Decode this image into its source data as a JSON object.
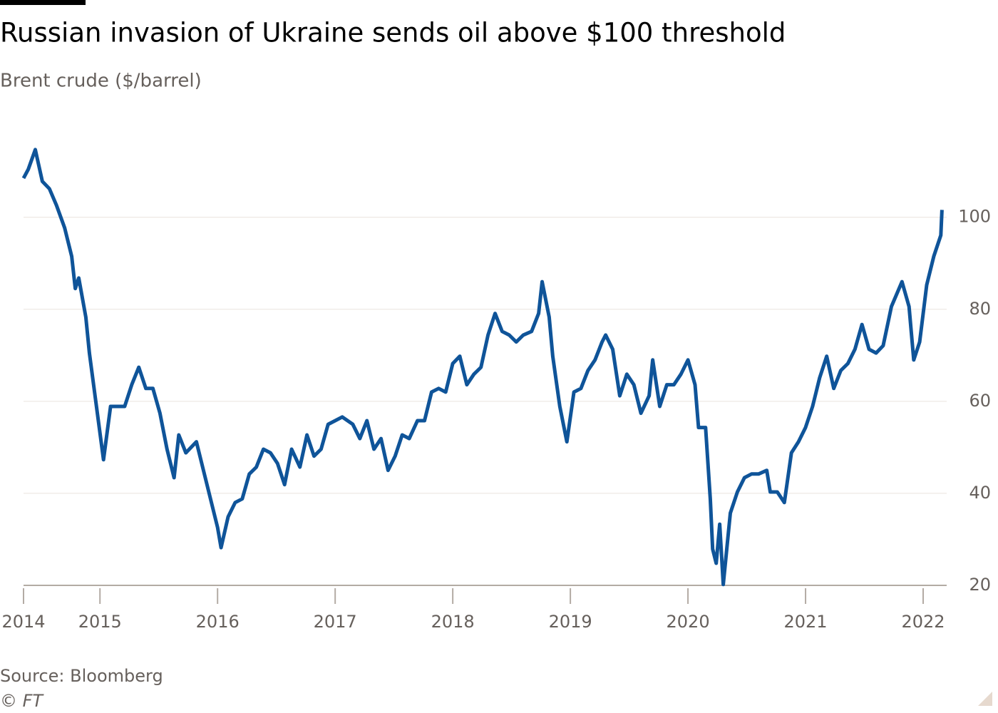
{
  "chart_data": {
    "type": "line",
    "title": "Russian invasion of Ukraine sends oil above $100 threshold",
    "subtitle": "Brent crude ($/barrel)",
    "source": "Source: Bloomberg",
    "credit": "© FT",
    "xlim": [
      2014.35,
      2022.2
    ],
    "xticks": [
      {
        "value": 2014.35,
        "label": "2014"
      },
      2015,
      2016,
      2017,
      2018,
      2019,
      2020,
      2021,
      2022
    ],
    "ylim": [
      20,
      117
    ],
    "yticks": [
      20,
      40,
      60,
      80,
      100
    ],
    "grid": true,
    "series": [
      {
        "name": "Brent crude",
        "color": "#0f5499",
        "x": [
          2014.35,
          2014.39,
          2014.45,
          2014.51,
          2014.57,
          2014.63,
          2014.7,
          2014.76,
          2014.79,
          2014.82,
          2014.88,
          2014.91,
          2014.97,
          2015.03,
          2015.09,
          2015.15,
          2015.21,
          2015.27,
          2015.33,
          2015.39,
          2015.45,
          2015.51,
          2015.57,
          2015.63,
          2015.67,
          2015.73,
          2015.82,
          2015.88,
          2015.94,
          2016.0,
          2016.03,
          2016.09,
          2016.15,
          2016.21,
          2016.27,
          2016.33,
          2016.39,
          2016.45,
          2016.51,
          2016.57,
          2016.63,
          2016.7,
          2016.76,
          2016.82,
          2016.88,
          2016.94,
          2017.0,
          2017.06,
          2017.15,
          2017.21,
          2017.27,
          2017.33,
          2017.39,
          2017.45,
          2017.51,
          2017.57,
          2017.63,
          2017.7,
          2017.76,
          2017.82,
          2017.88,
          2017.94,
          2018.0,
          2018.06,
          2018.12,
          2018.18,
          2018.24,
          2018.3,
          2018.36,
          2018.42,
          2018.48,
          2018.54,
          2018.6,
          2018.67,
          2018.73,
          2018.76,
          2018.82,
          2018.85,
          2018.91,
          2018.97,
          2019.03,
          2019.09,
          2019.15,
          2019.21,
          2019.27,
          2019.3,
          2019.36,
          2019.42,
          2019.48,
          2019.54,
          2019.6,
          2019.67,
          2019.7,
          2019.76,
          2019.82,
          2019.88,
          2019.94,
          2020.0,
          2020.06,
          2020.09,
          2020.15,
          2020.19,
          2020.21,
          2020.24,
          2020.27,
          2020.3,
          2020.36,
          2020.42,
          2020.48,
          2020.54,
          2020.6,
          2020.67,
          2020.7,
          2020.76,
          2020.82,
          2020.88,
          2020.94,
          2021.0,
          2021.06,
          2021.12,
          2021.18,
          2021.24,
          2021.3,
          2021.36,
          2021.42,
          2021.48,
          2021.54,
          2021.6,
          2021.66,
          2021.73,
          2021.82,
          2021.88,
          2021.92,
          2021.97,
          2022.03,
          2022.09,
          2022.15,
          2022.16
        ],
        "values": [
          108.5,
          110.4,
          114.7,
          107.8,
          106.2,
          102.6,
          97.7,
          91.5,
          84.5,
          86.8,
          78.3,
          70.5,
          58.9,
          47.3,
          58.9,
          58.9,
          58.9,
          63.6,
          67.4,
          62.8,
          62.8,
          57.4,
          49.6,
          43.4,
          52.7,
          48.8,
          51.2,
          45,
          38.8,
          32.6,
          28.2,
          34.9,
          38,
          38.8,
          44.2,
          45.7,
          49.6,
          48.8,
          46.5,
          41.9,
          49.6,
          45.7,
          52.7,
          48.1,
          49.6,
          55,
          55.8,
          56.6,
          55,
          51.9,
          55.8,
          49.6,
          51.9,
          45,
          48.1,
          52.7,
          51.9,
          55.8,
          55.8,
          62,
          62.8,
          62,
          68.2,
          69.8,
          63.6,
          65.9,
          67.4,
          74.4,
          79.1,
          75.2,
          74.4,
          72.9,
          74.4,
          75.2,
          79.1,
          86,
          78.3,
          69.8,
          58.9,
          51.2,
          62,
          62.8,
          66.7,
          69,
          72.9,
          74.4,
          71.3,
          61.2,
          65.9,
          63.6,
          57.4,
          61.2,
          69,
          58.9,
          63.6,
          63.6,
          65.9,
          69,
          63.6,
          54.3,
          54.3,
          38.8,
          27.9,
          24.8,
          33.3,
          20.2,
          35.7,
          40.3,
          43.4,
          44.2,
          44.2,
          45,
          40.3,
          40.3,
          38,
          48.8,
          51.2,
          54.3,
          58.9,
          65.1,
          69.8,
          62.8,
          66.7,
          68.2,
          71.3,
          76.7,
          71.3,
          70.5,
          72.1,
          80.6,
          86,
          80.6,
          69,
          72.9,
          85.3,
          91.5,
          96.1,
          101.6
        ]
      }
    ]
  }
}
